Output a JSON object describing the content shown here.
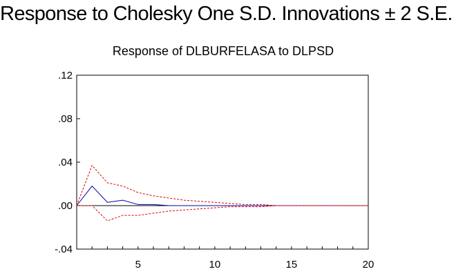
{
  "page_title": "Response to Cholesky One S.D. Innovations ± 2 S.E.",
  "chart_data": {
    "type": "line",
    "title": "Response of DLBURFELASA to DLPSD",
    "xlabel": "",
    "ylabel": "",
    "xlim": [
      1,
      20
    ],
    "ylim": [
      -0.04,
      0.12
    ],
    "x_ticks": [
      5,
      10,
      15,
      20
    ],
    "x_tick_labels": [
      "5",
      "10",
      "15",
      "20"
    ],
    "y_ticks": [
      -0.04,
      0.0,
      0.04,
      0.08,
      0.12
    ],
    "y_tick_labels": [
      "-.04",
      ".00",
      ".04",
      ".08",
      ".12"
    ],
    "zero_line": true,
    "grid": false,
    "legend": "none",
    "x": [
      1,
      2,
      3,
      4,
      5,
      6,
      7,
      8,
      9,
      10,
      11,
      12,
      13,
      14,
      15,
      16,
      17,
      18,
      19,
      20
    ],
    "series": [
      {
        "role": "response",
        "color": "#0000aa",
        "style": "solid",
        "values": [
          0.0,
          0.018,
          0.003,
          0.005,
          0.001,
          0.001,
          0.0,
          0.0,
          0.0,
          0.0,
          0.0,
          0.0,
          0.0,
          0.0,
          0.0,
          0.0,
          0.0,
          0.0,
          0.0,
          0.0
        ]
      },
      {
        "role": "upper band",
        "color": "#dd0000",
        "style": "dashed",
        "values": [
          0.0,
          0.037,
          0.021,
          0.018,
          0.012,
          0.009,
          0.007,
          0.005,
          0.004,
          0.003,
          0.002,
          0.001,
          0.001,
          0.0,
          0.0,
          0.0,
          0.0,
          0.0,
          0.0,
          0.0
        ]
      },
      {
        "role": "lower band",
        "color": "#dd0000",
        "style": "dashed",
        "values": [
          0.0,
          0.0,
          -0.014,
          -0.009,
          -0.009,
          -0.007,
          -0.005,
          -0.004,
          -0.003,
          -0.002,
          -0.001,
          -0.001,
          -0.001,
          0.0,
          0.0,
          0.0,
          0.0,
          0.0,
          0.0,
          0.0
        ]
      }
    ]
  }
}
